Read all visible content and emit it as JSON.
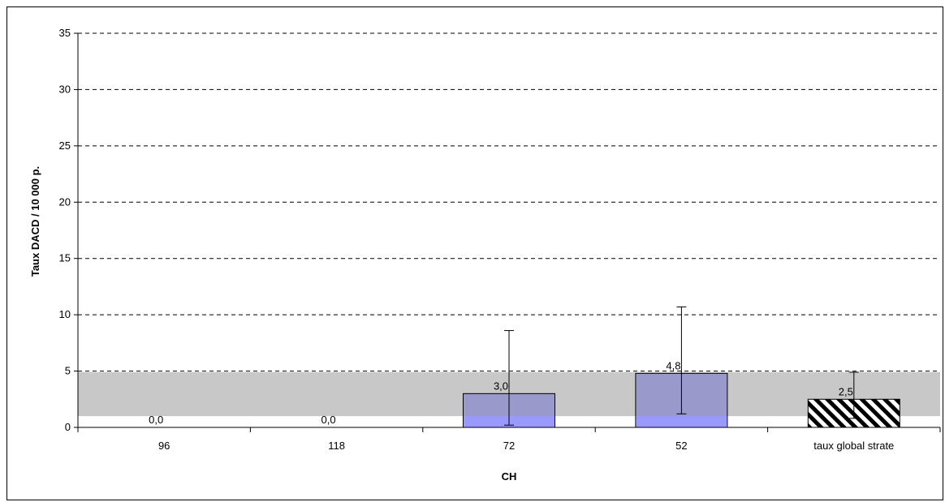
{
  "chart_data": {
    "type": "bar",
    "xlabel": "CH",
    "ylabel": "Taux DACD / 10 000 p.",
    "ylim": [
      0,
      35
    ],
    "yticks": [
      0,
      5,
      10,
      15,
      20,
      25,
      30,
      35
    ],
    "grid": true,
    "categories": [
      "96",
      "118",
      "72",
      "52",
      "taux global strate"
    ],
    "values": [
      0.0,
      0.0,
      3.0,
      4.8,
      2.5
    ],
    "value_labels": [
      "0,0",
      "0,0",
      "3,0",
      "4,8",
      "2,5"
    ],
    "error_bars": [
      null,
      null,
      [
        0.2,
        8.6
      ],
      [
        1.2,
        10.7
      ],
      [
        0.8,
        4.9
      ]
    ],
    "reference_band": [
      1.0,
      4.9
    ],
    "colors": {
      "bar": "#9999cc",
      "bar_below_band": "#9999ff",
      "band": "#c8c8c8",
      "global_hatch": "#000000"
    }
  }
}
